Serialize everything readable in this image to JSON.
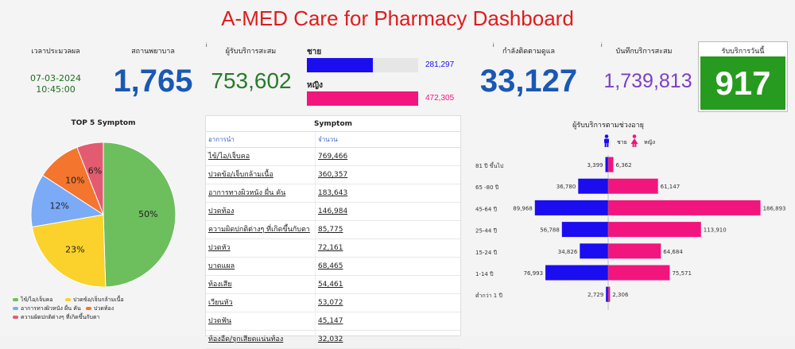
{
  "title": "A-MED Care for Pharmacy Dashboard",
  "kpis": {
    "processed_time_label": "เวลาประมวลผล",
    "processed_date": "07-03-2024",
    "processed_time": "10:45:00",
    "pharmacy_label": "สถานพยาบาล",
    "pharmacy_value": "1,765",
    "users_label": "ผู้รับบริการสะสม",
    "users_value": "753,602",
    "gender": [
      {
        "label": "ชาย",
        "value": 281297,
        "display": "281,297",
        "color": "#1a0df0"
      },
      {
        "label": "หญิง",
        "value": 472305,
        "display": "472,305",
        "color": "#f2157d"
      }
    ],
    "following_label": "กำลังติดตามดูแล",
    "following_value": "33,127",
    "records_label": "บันทึกบริการสะสม",
    "records_value": "1,739,813",
    "today_label": "รับบริการวันนี้",
    "today_value": "917",
    "info_icon": "i"
  },
  "colors": {
    "title": "#e01c1c",
    "blue_kpi": "#1a58b5",
    "green_kpi": "#2a7a2a",
    "purple_kpi": "#7b3fc7",
    "male": "#1a0df0",
    "female": "#f2157d"
  },
  "pie_title": "TOP 5 Symptom",
  "table": {
    "title": "Symptom",
    "col1": "อาการนำ",
    "col2": "จำนวน",
    "rows": [
      {
        "symptom": "ไข้/ไอ/เจ็บคอ",
        "count": "769,466"
      },
      {
        "symptom": "ปวดข้อ/เจ็บกล้ามเนื้อ",
        "count": "360,357"
      },
      {
        "symptom": "อาการทางผิวหนัง ผื่น คัน",
        "count": "183,643"
      },
      {
        "symptom": "ปวดท้อง",
        "count": "146,984"
      },
      {
        "symptom": "ความผิดปกติต่างๆ ที่เกิดขึ้นกับตา",
        "count": "85,775"
      },
      {
        "symptom": "ปวดหัว",
        "count": "72,161"
      },
      {
        "symptom": "บาดแผล",
        "count": "68,465"
      },
      {
        "symptom": "ท้องเสีย",
        "count": "54,461"
      },
      {
        "symptom": "เวียนหัว",
        "count": "53,072"
      },
      {
        "symptom": "ปวดฟัน",
        "count": "45,147"
      },
      {
        "symptom": "ท้องอืด/จุกเสียดแน่นท้อง",
        "count": "32,032"
      }
    ]
  },
  "pyramid_title": "ผู้รับบริการตามช่วงอายุ",
  "pyramid_legend": {
    "male": "ชาย",
    "female": "หญิง",
    "male_icon": "male-person-icon",
    "female_icon": "female-person-icon"
  },
  "chart_data": [
    {
      "type": "pie",
      "title": "TOP 5 Symptom",
      "categories": [
        "ไข้/ไอ/เจ็บคอ",
        "ปวดข้อ/เจ็บกล้ามเนื้อ",
        "อาการทางผิวหนัง ผื่น คัน",
        "ปวดท้อง",
        "ความผิดปกติต่างๆ ที่เกิดขึ้นกับตา"
      ],
      "values": [
        50,
        23,
        12,
        10,
        6
      ],
      "labels": [
        "50%",
        "23%",
        "12%",
        "10%",
        "6%"
      ],
      "colors": [
        "#6dbf5e",
        "#fbd12b",
        "#7baaf7",
        "#f4752d",
        "#e35b71"
      ],
      "legend": "bottom"
    },
    {
      "type": "bar",
      "title": "ผู้รับบริการตามช่วงอายุ",
      "categories": [
        "81 ปี ขึ้นไป",
        "65 -80 ปี",
        "45-64 ปี",
        "25-44 ปี",
        "15-24 ปี",
        "1-14 ปี",
        "ต่ำกว่า 1 ปี"
      ],
      "series": [
        {
          "name": "ชาย",
          "values": [
            3399,
            36780,
            89968,
            56788,
            34826,
            76993,
            2729
          ],
          "labels": [
            "3,399",
            "36,780",
            "89,968",
            "56,788",
            "34,826",
            "76,993",
            "2,729"
          ],
          "color": "#1a0df0"
        },
        {
          "name": "หญิง",
          "values": [
            6362,
            61147,
            186893,
            113910,
            64684,
            75571,
            2306
          ],
          "labels": [
            "6,362",
            "61,147",
            "186,893",
            "113,910",
            "64,684",
            "75,571",
            "2,306"
          ],
          "color": "#f2157d"
        }
      ],
      "orientation": "horizontal-diverging",
      "legend": "top"
    }
  ]
}
